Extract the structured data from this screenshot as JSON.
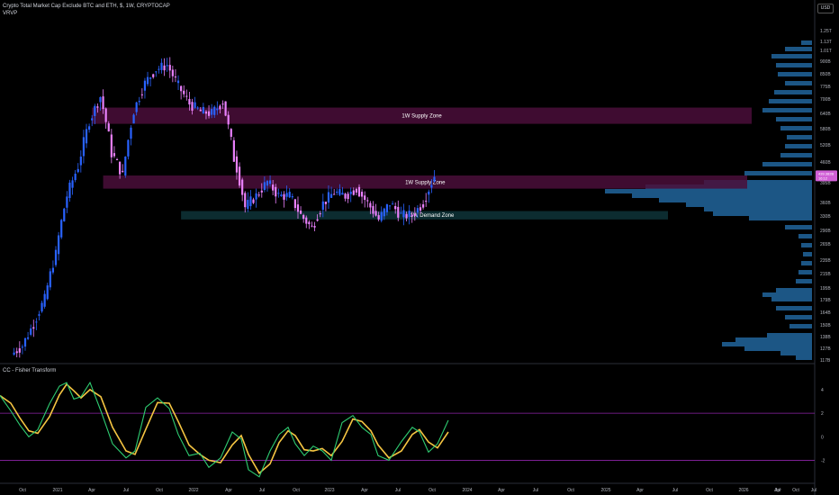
{
  "header": {
    "title": "Crypto Total Market Cap Exclude BTC and ETH, $, 1W, CRYPTOCAP",
    "indicator": "VRVP",
    "currency": "USD"
  },
  "fisher": {
    "title": "CC - Fisher Transform",
    "ticks": [
      "4",
      "2",
      "0",
      "-2"
    ]
  },
  "colors": {
    "background": "#000000",
    "up_candle": "#2962ff",
    "down_candle": "#ea80fc",
    "supply_zone": "#4a0e3a",
    "demand_zone": "#0e3438",
    "volume_profile": "#1f5f93",
    "fisher_line": "#2ecc71",
    "fisher_trigger": "#f5c542",
    "fisher_level": "#8e24aa",
    "price_badge": "#d05fd6"
  },
  "chart_data": {
    "type": "candlestick",
    "title": "Crypto Total Market Cap Exclude BTC and ETH, $, 1W, CRYPTOCAP",
    "y_axis_ticks": [
      "1.25T",
      "1.13T",
      "1.01T",
      "900B",
      "850B",
      "775B",
      "700B",
      "640B",
      "580B",
      "520B",
      "460B",
      "420B",
      "395B",
      "360B",
      "330B",
      "290B",
      "265B",
      "235B",
      "215B",
      "195B",
      "179B",
      "164B",
      "150B",
      "138B",
      "127B",
      "117B"
    ],
    "x_axis_ticks": [
      "Oct",
      "2021",
      "Apr",
      "Jul",
      "Oct",
      "2022",
      "Apr",
      "Jul",
      "Oct",
      "2023",
      "Apr",
      "Jul",
      "Oct",
      "2024",
      "Apr",
      "Jul",
      "Oct",
      "2025",
      "Apr",
      "Jul",
      "Oct",
      "2026",
      "Apr",
      "Jul",
      "Oct",
      "Jul"
    ],
    "price_labels": [
      "439.382B",
      "16:12"
    ],
    "zones": [
      {
        "label": "1W Supply Zone",
        "type": "supply",
        "from": "2021-04",
        "low": 640,
        "high": 720
      },
      {
        "label": "1W Supply Zone",
        "type": "supply",
        "from": "2021-05",
        "low": 400,
        "high": 440
      },
      {
        "label": "1W Demand Zone",
        "type": "demand",
        "from": "2021-12",
        "low": 320,
        "high": 340
      }
    ],
    "weekly_close": [
      {
        "date": "2020-09",
        "close": 120
      },
      {
        "date": "2020-10",
        "close": 128
      },
      {
        "date": "2020-11",
        "close": 150
      },
      {
        "date": "2020-12",
        "close": 180
      },
      {
        "date": "2021-01",
        "close": 250
      },
      {
        "date": "2021-02",
        "close": 380
      },
      {
        "date": "2021-03",
        "close": 470
      },
      {
        "date": "2021-04",
        "close": 650
      },
      {
        "date": "2021-05",
        "close": 780
      },
      {
        "date": "2021-06",
        "close": 520
      },
      {
        "date": "2021-07",
        "close": 440
      },
      {
        "date": "2021-08",
        "close": 700
      },
      {
        "date": "2021-09",
        "close": 860
      },
      {
        "date": "2021-10",
        "close": 950
      },
      {
        "date": "2021-11",
        "close": 980
      },
      {
        "date": "2021-12",
        "close": 840
      },
      {
        "date": "2022-01",
        "close": 740
      },
      {
        "date": "2022-02",
        "close": 700
      },
      {
        "date": "2022-03",
        "close": 690
      },
      {
        "date": "2022-04",
        "close": 750
      },
      {
        "date": "2022-05",
        "close": 500
      },
      {
        "date": "2022-06",
        "close": 350
      },
      {
        "date": "2022-07",
        "close": 380
      },
      {
        "date": "2022-08",
        "close": 420
      },
      {
        "date": "2022-09",
        "close": 380
      },
      {
        "date": "2022-10",
        "close": 380
      },
      {
        "date": "2022-11",
        "close": 330
      },
      {
        "date": "2022-12",
        "close": 300
      },
      {
        "date": "2023-01",
        "close": 360
      },
      {
        "date": "2023-02",
        "close": 390
      },
      {
        "date": "2023-03",
        "close": 380
      },
      {
        "date": "2023-04",
        "close": 400
      },
      {
        "date": "2023-05",
        "close": 360
      },
      {
        "date": "2023-06",
        "close": 320
      },
      {
        "date": "2023-07",
        "close": 360
      },
      {
        "date": "2023-08",
        "close": 330
      },
      {
        "date": "2023-09",
        "close": 330
      },
      {
        "date": "2023-10",
        "close": 360
      },
      {
        "date": "2023-11",
        "close": 439
      }
    ]
  }
}
